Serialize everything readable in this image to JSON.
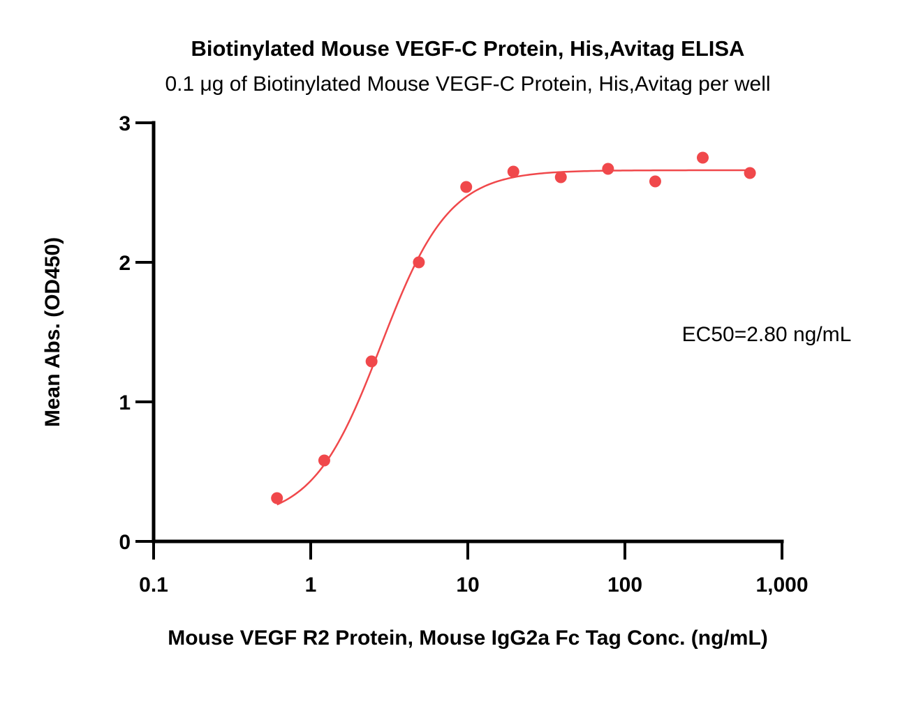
{
  "chart_data": {
    "type": "scatter",
    "title": "Biotinylated Mouse VEGF-C Protein, His,Avitag ELISA",
    "subtitle": "0.1 μg of Biotinylated Mouse VEGF-C Protein, His,Avitag per well",
    "xlabel": "Mouse VEGF R2 Protein, Mouse IgG2a Fc Tag Conc. (ng/mL)",
    "ylabel": "Mean Abs. (OD450)",
    "x_scale": "log",
    "xlim": [
      0.1,
      1000
    ],
    "ylim": [
      0,
      3
    ],
    "x_ticks": [
      {
        "value": 0.1,
        "label": "0.1"
      },
      {
        "value": 1,
        "label": "1"
      },
      {
        "value": 10,
        "label": "10"
      },
      {
        "value": 100,
        "label": "100"
      },
      {
        "value": 1000,
        "label": "1,000"
      }
    ],
    "y_ticks": [
      {
        "value": 0,
        "label": "0"
      },
      {
        "value": 1,
        "label": "1"
      },
      {
        "value": 2,
        "label": "2"
      },
      {
        "value": 3,
        "label": "3"
      }
    ],
    "grid": false,
    "legend": "none",
    "color": "#f0484b",
    "series": [
      {
        "x": [
          0.61,
          1.22,
          2.44,
          4.88,
          9.77,
          19.5,
          39.1,
          78.1,
          156,
          313,
          625
        ],
        "y": [
          0.31,
          0.58,
          1.29,
          2.0,
          2.54,
          2.65,
          2.61,
          2.67,
          2.58,
          2.75,
          2.64
        ]
      }
    ],
    "fit": {
      "model": "4PL",
      "bottom": 0.15,
      "top": 2.66,
      "ec50": 2.8,
      "hill": 2.0
    },
    "annotation": "EC50=2.80 ng/mL"
  }
}
